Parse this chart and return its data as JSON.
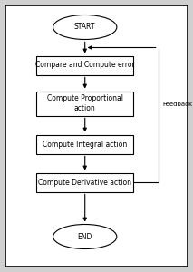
{
  "bg_color": "#d0d0d0",
  "inner_bg": "#ffffff",
  "border_color": "#000000",
  "box_color": "#ffffff",
  "text_color": "#000000",
  "start_label": "START",
  "end_label": "END",
  "boxes": [
    "Compare and Compute error",
    "Compute Proportional\naction",
    "Compute Integral action",
    "Compute Derivative action"
  ],
  "feedback_label": "Feedback",
  "arrow_color": "#000000",
  "font_size": 5.5,
  "feedback_font_size": 5.0
}
